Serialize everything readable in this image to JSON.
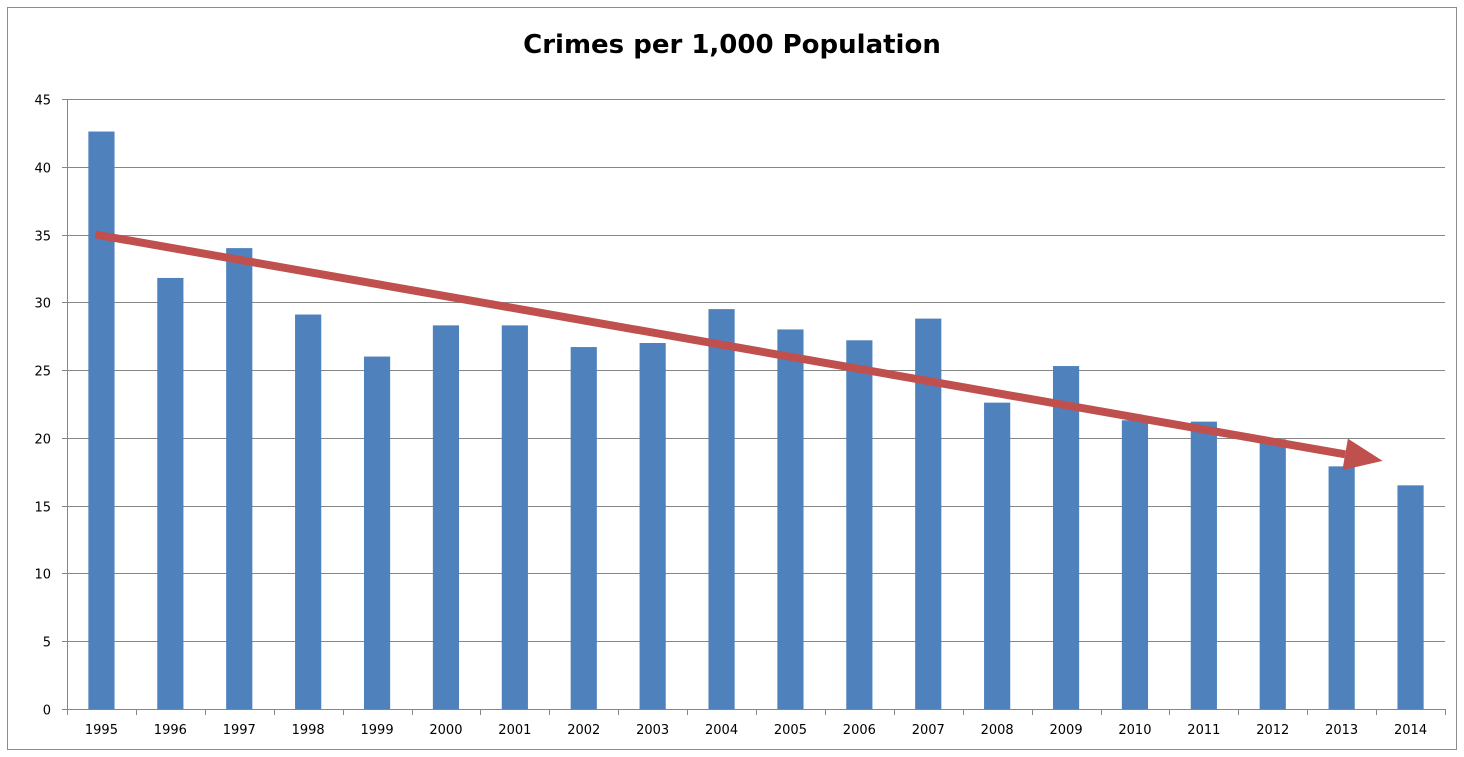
{
  "chart_data": {
    "type": "bar",
    "title": "Crimes per 1,000 Population",
    "xlabel": "",
    "ylabel": "",
    "categories": [
      "1995",
      "1996",
      "1997",
      "1998",
      "1999",
      "2000",
      "2001",
      "2002",
      "2003",
      "2004",
      "2005",
      "2006",
      "2007",
      "2008",
      "2009",
      "2010",
      "2011",
      "2012",
      "2013",
      "2014"
    ],
    "values": [
      42.6,
      31.8,
      34.0,
      29.1,
      26.0,
      28.3,
      28.3,
      26.7,
      27.0,
      29.5,
      28.0,
      27.2,
      28.8,
      22.6,
      25.3,
      21.3,
      21.2,
      19.9,
      17.9,
      16.5
    ],
    "ylim": [
      0,
      45
    ],
    "yticks": [
      0,
      5,
      10,
      15,
      20,
      25,
      30,
      35,
      40,
      45
    ],
    "grid": true,
    "legend": "none",
    "bar_color": "#4f81bd",
    "trend_arrow": {
      "color": "#c0504d",
      "start": {
        "category": "1995",
        "value": 35.0
      },
      "end": {
        "category": "2014",
        "value": 18.3
      }
    }
  }
}
